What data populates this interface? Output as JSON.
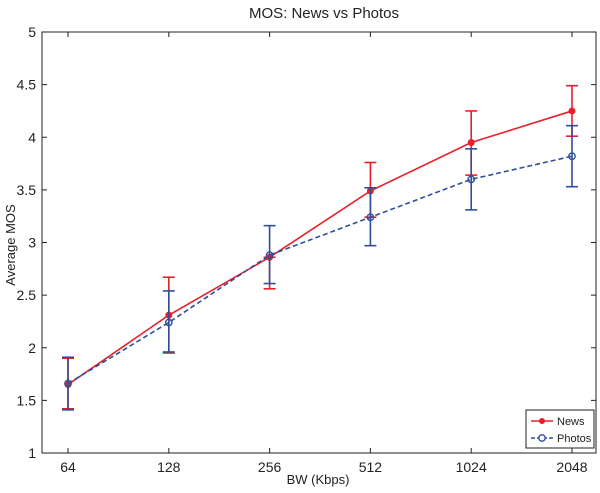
{
  "chart_data": {
    "type": "line",
    "title": "MOS: News vs Photos",
    "xlabel": "BW (Kbps)",
    "ylabel": "Average MOS",
    "categories": [
      "64",
      "128",
      "256",
      "512",
      "1024",
      "2048"
    ],
    "ylim": [
      1,
      5
    ],
    "yticks": [
      "1",
      "1.5",
      "2",
      "2.5",
      "3",
      "3.5",
      "4",
      "4.5",
      "5"
    ],
    "grid": false,
    "legend_position": "bottom-right",
    "series": [
      {
        "name": "News",
        "color": "#e8202a",
        "line_style": "solid",
        "marker": "filled-circle",
        "values": [
          1.65,
          2.31,
          2.86,
          3.49,
          3.95,
          4.25
        ],
        "error_low": [
          1.42,
          1.95,
          2.56,
          3.24,
          3.64,
          4.01
        ],
        "error_high": [
          1.9,
          2.67,
          2.86,
          3.76,
          4.25,
          4.49
        ]
      },
      {
        "name": "Photos",
        "color": "#2f4f9a",
        "line_style": "dashed",
        "marker": "open-circle",
        "values": [
          1.66,
          2.24,
          2.88,
          3.24,
          3.6,
          3.82
        ],
        "error_low": [
          1.41,
          1.96,
          2.61,
          2.97,
          3.31,
          3.53
        ],
        "error_high": [
          1.91,
          2.54,
          3.16,
          3.52,
          3.89,
          4.11
        ]
      }
    ]
  }
}
